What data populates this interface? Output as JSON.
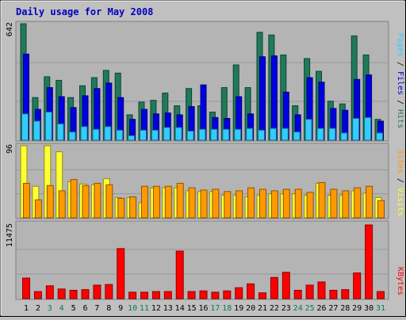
{
  "title": "Daily usage for May 2008",
  "days": [
    "1",
    "2",
    "3",
    "4",
    "5",
    "6",
    "7",
    "8",
    "9",
    "10",
    "11",
    "12",
    "13",
    "14",
    "15",
    "16",
    "17",
    "18",
    "19",
    "20",
    "21",
    "22",
    "23",
    "24",
    "25",
    "26",
    "27",
    "28",
    "29",
    "30",
    "31"
  ],
  "weekend_days": [
    "3",
    "4",
    "10",
    "11",
    "17",
    "18",
    "24",
    "25",
    "31"
  ],
  "colors": {
    "background": "#c0c0c0",
    "title": "#0000c0",
    "pages": "#33ccff",
    "files": "#0000e0",
    "hits": "#1f7a5a",
    "visits": "#ffff33",
    "sites": "#ff9900",
    "kbytes": "#ff0000",
    "weekday_label": "#000000",
    "weekend_label": "#00805a"
  },
  "chart_data": [
    {
      "type": "bar",
      "name": "hits-files-pages",
      "categories": [
        "1",
        "2",
        "3",
        "4",
        "5",
        "6",
        "7",
        "8",
        "9",
        "10",
        "11",
        "12",
        "13",
        "14",
        "15",
        "16",
        "17",
        "18",
        "19",
        "20",
        "21",
        "22",
        "23",
        "24",
        "25",
        "26",
        "27",
        "28",
        "29",
        "30",
        "31"
      ],
      "ylim": [
        0,
        642
      ],
      "ymax_label": "642",
      "axis_title_parts": [
        {
          "text": "Pages",
          "color": "#33ccff"
        },
        {
          "text": " / ",
          "color": "#000000"
        },
        {
          "text": "Files",
          "color": "#0000e0"
        },
        {
          "text": " / ",
          "color": "#000000"
        },
        {
          "text": "Hits",
          "color": "#1f7a5a"
        }
      ],
      "series": [
        {
          "name": "Hits",
          "values": [
            642,
            235,
            350,
            330,
            235,
            300,
            345,
            385,
            370,
            140,
            210,
            220,
            260,
            190,
            285,
            190,
            155,
            290,
            415,
            290,
            595,
            580,
            470,
            190,
            450,
            380,
            215,
            200,
            575,
            470,
            115
          ]
        },
        {
          "name": "Files",
          "values": [
            475,
            170,
            290,
            240,
            180,
            245,
            285,
            315,
            235,
            115,
            170,
            145,
            150,
            140,
            185,
            305,
            125,
            120,
            240,
            145,
            460,
            465,
            265,
            140,
            345,
            320,
            175,
            165,
            335,
            360,
            105
          ]
        },
        {
          "name": "Pages",
          "values": [
            145,
            105,
            155,
            90,
            45,
            75,
            60,
            75,
            55,
            25,
            55,
            55,
            70,
            70,
            50,
            60,
            60,
            60,
            60,
            65,
            55,
            65,
            65,
            45,
            115,
            65,
            65,
            40,
            120,
            125,
            40
          ]
        }
      ]
    },
    {
      "type": "bar",
      "name": "visits-sites",
      "categories": [
        "1",
        "2",
        "3",
        "4",
        "5",
        "6",
        "7",
        "8",
        "9",
        "10",
        "11",
        "12",
        "13",
        "14",
        "15",
        "16",
        "17",
        "18",
        "19",
        "20",
        "21",
        "22",
        "23",
        "24",
        "25",
        "26",
        "27",
        "28",
        "29",
        "30",
        "31"
      ],
      "ylim": [
        0,
        96
      ],
      "ymax_label": "96",
      "axis_title_parts": [
        {
          "text": "Sites",
          "color": "#ff9900"
        },
        {
          "text": " / ",
          "color": "#000000"
        },
        {
          "text": "Visits",
          "color": "#ffff33"
        }
      ],
      "series": [
        {
          "name": "Visits",
          "values": [
            96,
            42,
            96,
            88,
            48,
            45,
            44,
            52,
            27,
            27,
            20,
            40,
            40,
            40,
            36,
            35,
            35,
            30,
            30,
            28,
            30,
            32,
            32,
            32,
            30,
            46,
            30,
            30,
            36,
            33,
            27
          ]
        },
        {
          "name": "Sites",
          "values": [
            46,
            24,
            43,
            36,
            51,
            43,
            46,
            44,
            26,
            28,
            42,
            42,
            42,
            46,
            40,
            37,
            38,
            35,
            36,
            40,
            38,
            36,
            38,
            38,
            34,
            47,
            38,
            36,
            40,
            42,
            23
          ]
        }
      ]
    },
    {
      "type": "bar",
      "name": "kbytes",
      "categories": [
        "1",
        "2",
        "3",
        "4",
        "5",
        "6",
        "7",
        "8",
        "9",
        "10",
        "11",
        "12",
        "13",
        "14",
        "15",
        "16",
        "17",
        "18",
        "19",
        "20",
        "21",
        "22",
        "23",
        "24",
        "25",
        "26",
        "27",
        "28",
        "29",
        "30",
        "31"
      ],
      "ylim": [
        0,
        11475
      ],
      "ymax_label": "11475",
      "axis_title_parts": [
        {
          "text": "KBytes",
          "color": "#ff0000"
        }
      ],
      "series": [
        {
          "name": "KBytes",
          "values": [
            3200,
            1100,
            2000,
            1500,
            1300,
            1400,
            2100,
            2200,
            7800,
            1000,
            1000,
            1100,
            1100,
            7400,
            1100,
            1200,
            1000,
            1200,
            1700,
            2300,
            900,
            3300,
            4100,
            1300,
            2100,
            2600,
            1300,
            1400,
            4000,
            11475,
            1100
          ]
        }
      ]
    }
  ]
}
